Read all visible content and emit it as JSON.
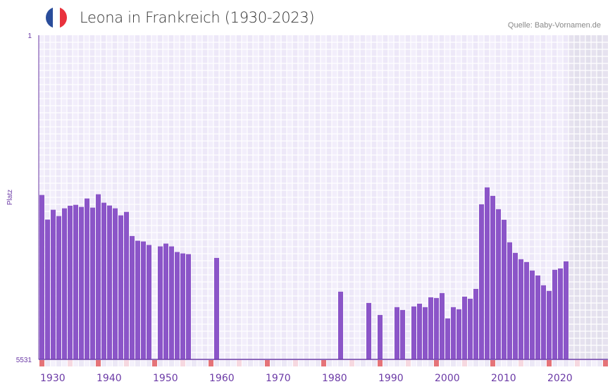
{
  "header": {
    "title": "Leona in Frankreich (1930-2023)",
    "source": "Quelle: Baby-Vornamen.de",
    "flag_colors": [
      "#2a4d9b",
      "#ffffff",
      "#e9323d"
    ]
  },
  "chart_data": {
    "type": "bar",
    "title": "Leona in Frankreich (1930-2023)",
    "xlabel": "",
    "ylabel": "Platz",
    "y_ticks": [
      "1",
      "5531"
    ],
    "ylim": [
      1,
      5531
    ],
    "y_inverted": true,
    "x_ticks": [
      "1930",
      "1940",
      "1950",
      "1960",
      "1970",
      "1980",
      "1990",
      "2000",
      "2010",
      "2020"
    ],
    "x_range": [
      1930,
      2030
    ],
    "data_years_end": 2023,
    "grid": true,
    "bar_color": "#8b55c8",
    "axis_color": "#6b3aa6",
    "points": [
      [
        1930,
        2726
      ],
      [
        1931,
        3146
      ],
      [
        1932,
        2978
      ],
      [
        1933,
        3086
      ],
      [
        1934,
        2954
      ],
      [
        1935,
        2910
      ],
      [
        1936,
        2894
      ],
      [
        1937,
        2930
      ],
      [
        1938,
        2786
      ],
      [
        1939,
        2942
      ],
      [
        1940,
        2714
      ],
      [
        1941,
        2858
      ],
      [
        1942,
        2906
      ],
      [
        1943,
        2954
      ],
      [
        1944,
        3074
      ],
      [
        1945,
        3014
      ],
      [
        1946,
        3426
      ],
      [
        1947,
        3507
      ],
      [
        1948,
        3519
      ],
      [
        1949,
        3579
      ],
      [
        1951,
        3603
      ],
      [
        1952,
        3555
      ],
      [
        1953,
        3603
      ],
      [
        1954,
        3699
      ],
      [
        1955,
        3723
      ],
      [
        1956,
        3735
      ],
      [
        1961,
        3800
      ],
      [
        1983,
        4376
      ],
      [
        1988,
        4568
      ],
      [
        1990,
        4773
      ],
      [
        1993,
        4640
      ],
      [
        1994,
        4688
      ],
      [
        1996,
        4628
      ],
      [
        1997,
        4580
      ],
      [
        1998,
        4640
      ],
      [
        1999,
        4472
      ],
      [
        2000,
        4484
      ],
      [
        2001,
        4400
      ],
      [
        2002,
        4832
      ],
      [
        2003,
        4640
      ],
      [
        2004,
        4676
      ],
      [
        2005,
        4460
      ],
      [
        2006,
        4496
      ],
      [
        2007,
        4328
      ],
      [
        2008,
        2885
      ],
      [
        2009,
        2597
      ],
      [
        2010,
        2741
      ],
      [
        2011,
        2969
      ],
      [
        2012,
        3149
      ],
      [
        2013,
        3534
      ],
      [
        2014,
        3714
      ],
      [
        2015,
        3822
      ],
      [
        2016,
        3870
      ],
      [
        2017,
        4015
      ],
      [
        2018,
        4099
      ],
      [
        2019,
        4267
      ],
      [
        2020,
        4363
      ],
      [
        2021,
        4003
      ],
      [
        2022,
        3979
      ],
      [
        2023,
        3858
      ]
    ]
  }
}
